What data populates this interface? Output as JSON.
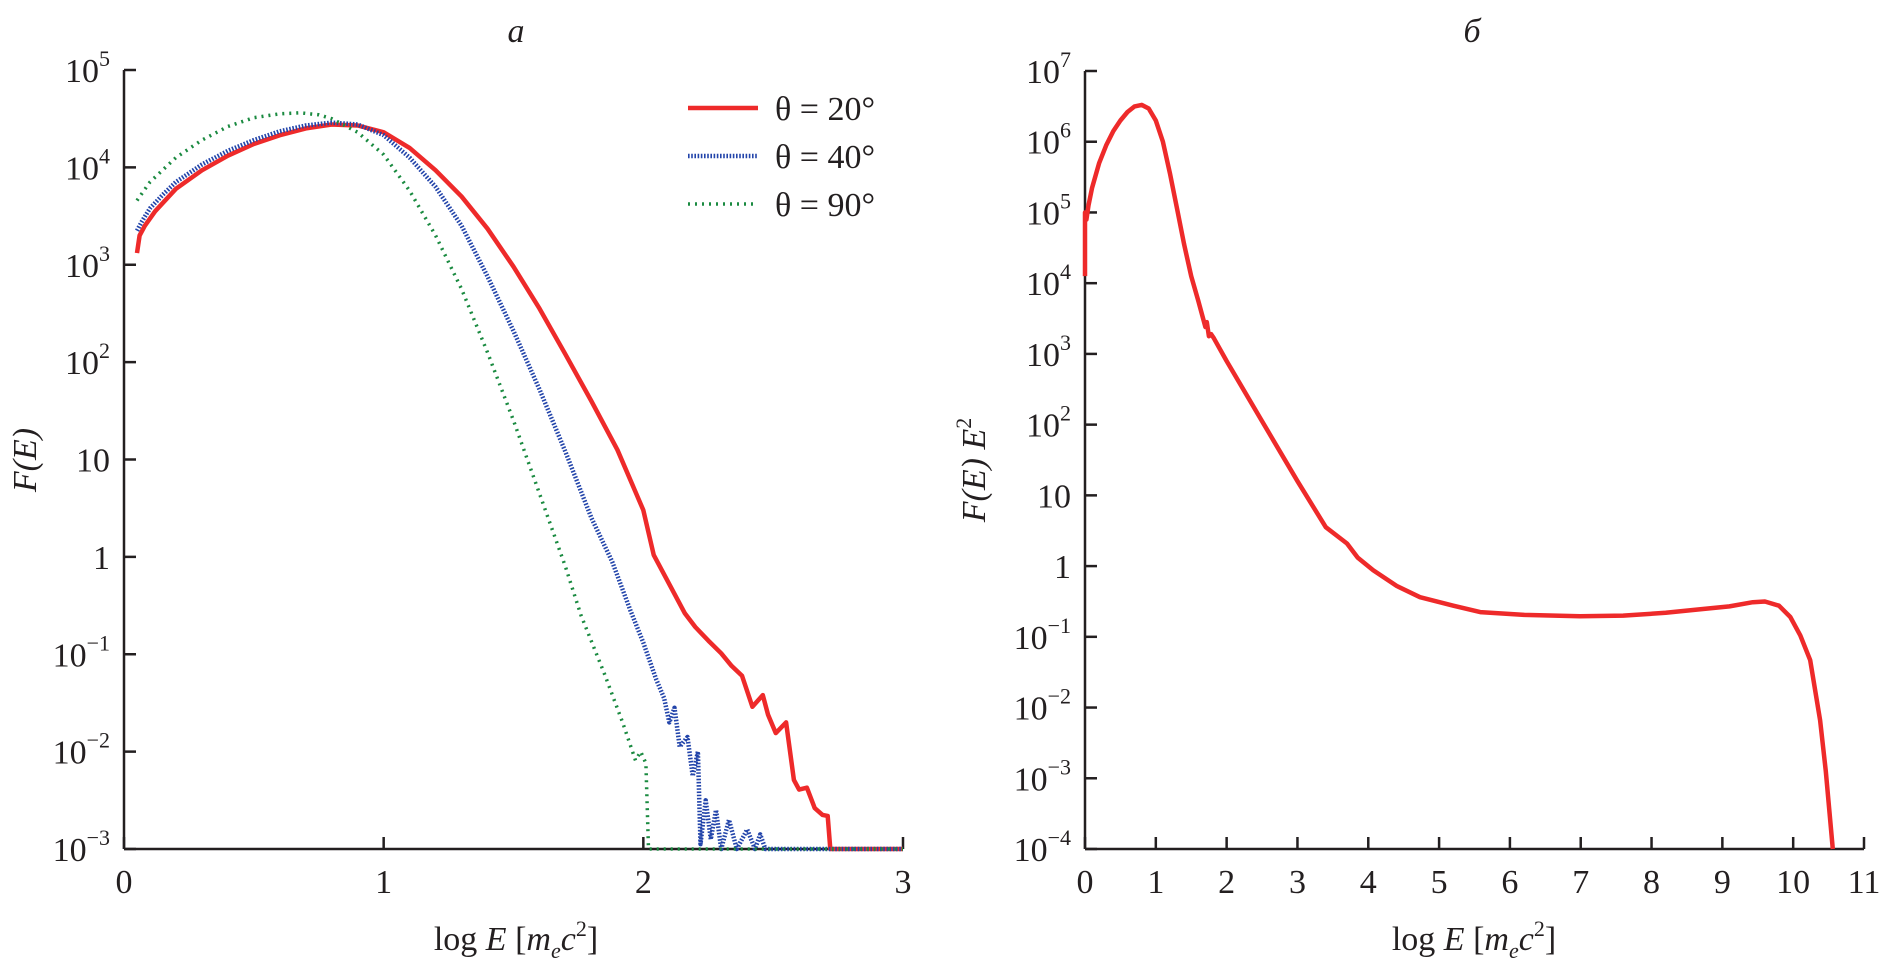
{
  "chart_data": [
    {
      "type": "line",
      "panel_label": "a",
      "title": "",
      "xlabel": "log E [m_e c^2]",
      "xlabel_parts": {
        "pre": "log ",
        "var": "E",
        "open": " [",
        "m": "m",
        "sub": "e",
        "c": "c",
        "sup": "2",
        "close": "]"
      },
      "ylabel": "F(E)",
      "xscale": "linear",
      "yscale": "log",
      "xlim": [
        0,
        3
      ],
      "ylim_log10": [
        -3,
        5
      ],
      "xticks": [
        {
          "value": 0,
          "label": "0"
        },
        {
          "value": 1,
          "label": "1"
        },
        {
          "value": 2,
          "label": "2"
        },
        {
          "value": 3,
          "label": "3"
        }
      ],
      "yticks": [
        {
          "log10": 5,
          "base": "10",
          "exp": "5"
        },
        {
          "log10": 4,
          "base": "10",
          "exp": "4"
        },
        {
          "log10": 3,
          "base": "10",
          "exp": "3"
        },
        {
          "log10": 2,
          "base": "10",
          "exp": "2"
        },
        {
          "log10": 1,
          "base": "10",
          "exp": ""
        },
        {
          "log10": 0,
          "base": "1",
          "exp": ""
        },
        {
          "log10": -1,
          "base": "10",
          "exp": "−1"
        },
        {
          "log10": -2,
          "base": "10",
          "exp": "−2"
        },
        {
          "log10": -3,
          "base": "10",
          "exp": "−3"
        }
      ],
      "grid": false,
      "legend": {
        "position": "top-right",
        "entries": [
          {
            "label": "θ = 20°",
            "series": 0
          },
          {
            "label": "θ = 40°",
            "series": 1
          },
          {
            "label": "θ = 90°",
            "series": 2
          }
        ]
      },
      "series": [
        {
          "name": "θ = 20°",
          "color": "#ee2a2a",
          "style": "solid",
          "x": [
            0.05,
            0.06,
            0.08,
            0.12,
            0.2,
            0.3,
            0.4,
            0.5,
            0.6,
            0.7,
            0.8,
            0.9,
            1.0,
            1.1,
            1.2,
            1.3,
            1.4,
            1.5,
            1.6,
            1.7,
            1.8,
            1.9,
            2.0,
            2.04,
            2.08,
            2.12,
            2.16,
            2.2,
            2.25,
            2.3,
            2.34,
            2.38,
            2.42,
            2.46,
            2.48,
            2.51,
            2.55,
            2.58,
            2.6,
            2.63,
            2.66,
            2.69,
            2.71,
            2.72,
            3.0
          ],
          "log10_y": [
            3.12,
            3.3,
            3.4,
            3.55,
            3.78,
            3.97,
            4.12,
            4.24,
            4.33,
            4.4,
            4.44,
            4.43,
            4.36,
            4.2,
            3.97,
            3.7,
            3.37,
            2.98,
            2.55,
            2.08,
            1.6,
            1.1,
            0.48,
            0.02,
            -0.18,
            -0.38,
            -0.58,
            -0.72,
            -0.86,
            -0.99,
            -1.12,
            -1.22,
            -1.54,
            -1.42,
            -1.62,
            -1.81,
            -1.7,
            -2.29,
            -2.39,
            -2.37,
            -2.58,
            -2.65,
            -2.66,
            -3.0,
            -3.0
          ]
        },
        {
          "name": "θ = 40°",
          "color": "#2244aa",
          "style": "dense-dotted",
          "x": [
            0.05,
            0.07,
            0.1,
            0.15,
            0.2,
            0.3,
            0.4,
            0.5,
            0.6,
            0.7,
            0.8,
            0.9,
            1.0,
            1.1,
            1.2,
            1.3,
            1.4,
            1.5,
            1.6,
            1.7,
            1.8,
            1.88,
            1.95,
            2.0,
            2.05,
            2.08,
            2.1,
            2.12,
            2.14,
            2.17,
            2.19,
            2.21,
            2.22,
            2.24,
            2.26,
            2.28,
            2.3,
            2.33,
            2.36,
            2.4,
            2.43,
            2.45,
            2.47,
            3.0
          ],
          "log10_y": [
            3.35,
            3.45,
            3.58,
            3.72,
            3.85,
            4.03,
            4.17,
            4.28,
            4.37,
            4.43,
            4.46,
            4.44,
            4.33,
            4.1,
            3.8,
            3.4,
            2.88,
            2.32,
            1.72,
            1.08,
            0.4,
            -0.05,
            -0.55,
            -0.88,
            -1.26,
            -1.45,
            -1.7,
            -1.55,
            -1.95,
            -1.85,
            -2.25,
            -2.0,
            -2.95,
            -2.5,
            -2.9,
            -2.6,
            -3.0,
            -2.7,
            -3.0,
            -2.8,
            -3.0,
            -2.85,
            -3.0,
            -3.0
          ]
        },
        {
          "name": "θ = 90°",
          "color": "#1a8a40",
          "style": "sparse-dotted",
          "x": [
            0.05,
            0.1,
            0.2,
            0.3,
            0.4,
            0.5,
            0.6,
            0.68,
            0.75,
            0.8,
            0.9,
            1.0,
            1.1,
            1.2,
            1.3,
            1.4,
            1.5,
            1.6,
            1.7,
            1.76,
            1.85,
            1.92,
            1.97,
            1.99,
            2.01,
            2.02,
            3.0
          ],
          "log10_y": [
            3.66,
            3.85,
            4.1,
            4.28,
            4.42,
            4.51,
            4.55,
            4.56,
            4.54,
            4.5,
            4.36,
            4.13,
            3.76,
            3.3,
            2.75,
            2.1,
            1.4,
            0.65,
            -0.1,
            -0.6,
            -1.2,
            -1.7,
            -2.09,
            -2.0,
            -2.12,
            -3.0,
            -3.0
          ]
        }
      ]
    },
    {
      "type": "line",
      "panel_label": "б",
      "title": "",
      "xlabel": "log E [m_e c^2]",
      "xlabel_parts": {
        "pre": "log ",
        "var": "E",
        "open": " [",
        "m": "m",
        "sub": "e",
        "c": "c",
        "sup": "2",
        "close": "]"
      },
      "ylabel": "F(E) E^2",
      "ylabel_parts": {
        "main": "F(E) E",
        "sup": "2"
      },
      "xscale": "linear",
      "yscale": "log",
      "xlim": [
        0,
        11
      ],
      "ylim_log10": [
        -4,
        7
      ],
      "xticks": [
        {
          "value": 0,
          "label": "0"
        },
        {
          "value": 1,
          "label": "1"
        },
        {
          "value": 2,
          "label": "2"
        },
        {
          "value": 3,
          "label": "3"
        },
        {
          "value": 4,
          "label": "4"
        },
        {
          "value": 5,
          "label": "5"
        },
        {
          "value": 6,
          "label": "6"
        },
        {
          "value": 7,
          "label": "7"
        },
        {
          "value": 8,
          "label": "8"
        },
        {
          "value": 9,
          "label": "9"
        },
        {
          "value": 10,
          "label": "10"
        },
        {
          "value": 11,
          "label": "11"
        }
      ],
      "yticks": [
        {
          "log10": 7,
          "base": "10",
          "exp": "7"
        },
        {
          "log10": 6,
          "base": "10",
          "exp": "6"
        },
        {
          "log10": 5,
          "base": "10",
          "exp": "5"
        },
        {
          "log10": 4,
          "base": "10",
          "exp": "4"
        },
        {
          "log10": 3,
          "base": "10",
          "exp": "3"
        },
        {
          "log10": 2,
          "base": "10",
          "exp": "2"
        },
        {
          "log10": 1,
          "base": "10",
          "exp": ""
        },
        {
          "log10": 0,
          "base": "1",
          "exp": ""
        },
        {
          "log10": -1,
          "base": "10",
          "exp": "−1"
        },
        {
          "log10": -2,
          "base": "10",
          "exp": "−2"
        },
        {
          "log10": -3,
          "base": "10",
          "exp": "−3"
        },
        {
          "log10": -4,
          "base": "10",
          "exp": "−4"
        }
      ],
      "grid": false,
      "series": [
        {
          "name": "F(E) E^2",
          "color": "#ee2a2a",
          "style": "solid",
          "x": [
            0.0,
            0.0,
            0.02,
            0.05,
            0.1,
            0.2,
            0.3,
            0.4,
            0.5,
            0.6,
            0.7,
            0.8,
            0.9,
            1.0,
            1.1,
            1.2,
            1.3,
            1.4,
            1.5,
            1.6,
            1.7,
            1.72,
            1.75,
            1.78,
            1.82,
            2.0,
            2.5,
            3.0,
            3.4,
            3.7,
            3.85,
            4.07,
            4.4,
            4.73,
            5.2,
            5.58,
            6.2,
            6.99,
            7.6,
            8.2,
            8.69,
            9.1,
            9.43,
            9.6,
            9.8,
            9.96,
            10.1,
            10.24,
            10.38,
            10.46,
            10.56
          ],
          "log10_y": [
            4.1,
            5.0,
            4.9,
            5.1,
            5.35,
            5.7,
            5.95,
            6.15,
            6.3,
            6.42,
            6.5,
            6.52,
            6.47,
            6.3,
            6.0,
            5.55,
            5.05,
            4.55,
            4.1,
            3.75,
            3.38,
            3.45,
            3.25,
            3.28,
            3.22,
            2.9,
            2.05,
            1.2,
            0.55,
            0.32,
            0.12,
            -0.06,
            -0.28,
            -0.44,
            -0.56,
            -0.65,
            -0.69,
            -0.71,
            -0.7,
            -0.66,
            -0.61,
            -0.57,
            -0.51,
            -0.5,
            -0.56,
            -0.72,
            -0.98,
            -1.33,
            -2.18,
            -2.9,
            -4.0
          ]
        }
      ]
    }
  ]
}
